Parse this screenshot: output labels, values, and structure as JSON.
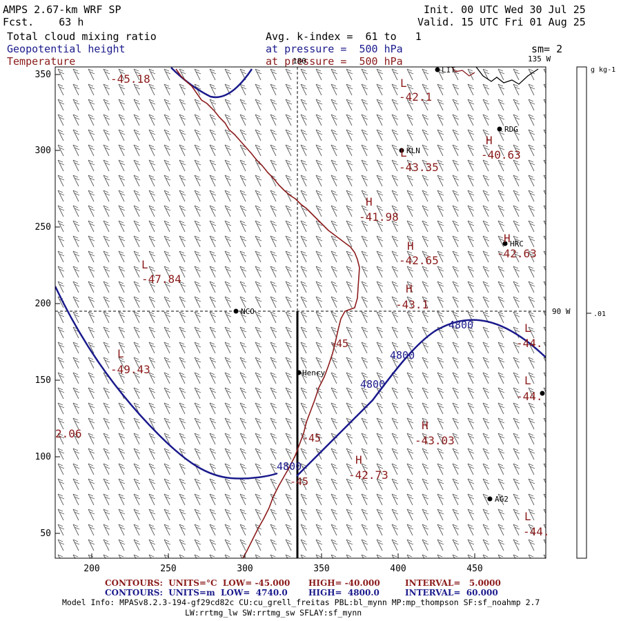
{
  "header": {
    "model": "AMPS 2.67-km WRF SP",
    "fcst": "Fcst.    63 h",
    "init": "Init. 00 UTC Wed 30 Jul 25",
    "valid": "Valid. 15 UTC Fri 01 Aug 25",
    "field1": "Total cloud mixing ratio",
    "field2": "Geopotential height",
    "field3": "Temperature",
    "avg": "Avg. k-index =  61 to   1",
    "press1": "at pressure =  500 hPa",
    "press2": "at pressure =  500 hPa",
    "sm": "sm= 2"
  },
  "map": {
    "x_ticks": [
      "200",
      "250",
      "300",
      "350",
      "400",
      "450"
    ],
    "y_ticks": [
      "350",
      "300",
      "250",
      "200",
      "150",
      "100",
      "50"
    ],
    "meridian_top": "180",
    "meridian_135": "135 W",
    "meridian_90": "90 W",
    "stations": [
      {
        "name": "LIT"
      },
      {
        "name": "RDG"
      },
      {
        "name": "KLN"
      },
      {
        "name": "HRC"
      },
      {
        "name": "NCO"
      },
      {
        "name": "Henry"
      },
      {
        "name": "AG2"
      },
      {
        "name": ""
      }
    ],
    "temp_labels": [
      "-45.18",
      "L",
      "-42.1",
      "H",
      "-40.63",
      "L",
      "-43.35",
      "H",
      "-41.98",
      "H",
      "-42.65",
      "H",
      "-42.63",
      "L",
      "-47.84",
      "H",
      "-43.1",
      "L",
      "-44.",
      "L",
      "-49.43",
      "L",
      "-44.",
      "H",
      "-43.03",
      "H",
      "-42.73",
      "L",
      "-44.",
      "2.06"
    ],
    "contour_labels": [
      "4800",
      "4800",
      "4800",
      "4800",
      "-45",
      "-45",
      "-45"
    ]
  },
  "colorbar": {
    "unit": "g kg-1",
    "value": ".01"
  },
  "footer": {
    "line1_a": "CONTOURS:  UNITS=°C  LOW= -45.000",
    "line1_b": "HIGH= -40.000",
    "line1_c": "INTERVAL=   5.0000",
    "line2_a": "CONTOURS:  UNITS=m  LOW=  4740.0",
    "line2_b": "HIGH=  4800.0",
    "line2_c": "INTERVAL=  60.000",
    "model_info": "Model Info: MPASv8.2.3-194-gf29cd82c CU:cu_grell_freitas PBL:bl_mynn MP:mp_thompson SF:sf_noahmp 2.7",
    "model_info2": "LW:rrtmg_lw SW:rrtmg_sw SFLAY:sf_mynn"
  },
  "colors": {
    "height": "#1a1a8c",
    "temperature": "#8b1a1a",
    "text": "#000000"
  }
}
